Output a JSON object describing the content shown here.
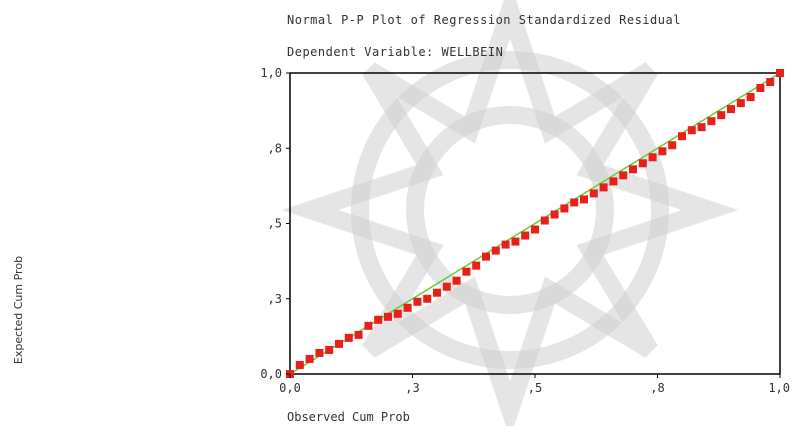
{
  "chart_data": {
    "type": "scatter",
    "title": "Normal P-P Plot of Regression Standardized Residual",
    "subtitle": "Dependent Variable: WELLBEIN",
    "xlabel": "Observed Cum Prob",
    "ylabel": "Expected Cum Prob",
    "xlim": [
      0,
      1
    ],
    "ylim": [
      0,
      1
    ],
    "x_ticks": [
      {
        "value": 0.0,
        "label": "0,0"
      },
      {
        "value": 0.25,
        "label": ",3"
      },
      {
        "value": 0.5,
        "label": ",5"
      },
      {
        "value": 0.75,
        "label": ",8"
      },
      {
        "value": 1.0,
        "label": "1,0"
      }
    ],
    "y_ticks": [
      {
        "value": 0.0,
        "label": "0,0"
      },
      {
        "value": 0.25,
        "label": ",3"
      },
      {
        "value": 0.5,
        "label": ",5"
      },
      {
        "value": 0.75,
        "label": ",8"
      },
      {
        "value": 1.0,
        "label": "1,0"
      }
    ],
    "grid": false,
    "reference_line": {
      "from": [
        0,
        0
      ],
      "to": [
        1,
        1
      ],
      "color": "#66cc33"
    },
    "series": [
      {
        "color": "#e8201a",
        "points": [
          [
            0.0,
            0.0
          ],
          [
            0.02,
            0.03
          ],
          [
            0.04,
            0.05
          ],
          [
            0.06,
            0.07
          ],
          [
            0.08,
            0.08
          ],
          [
            0.1,
            0.1
          ],
          [
            0.12,
            0.12
          ],
          [
            0.14,
            0.13
          ],
          [
            0.16,
            0.16
          ],
          [
            0.18,
            0.18
          ],
          [
            0.2,
            0.19
          ],
          [
            0.22,
            0.2
          ],
          [
            0.24,
            0.22
          ],
          [
            0.26,
            0.24
          ],
          [
            0.28,
            0.25
          ],
          [
            0.3,
            0.27
          ],
          [
            0.32,
            0.29
          ],
          [
            0.34,
            0.31
          ],
          [
            0.36,
            0.34
          ],
          [
            0.38,
            0.36
          ],
          [
            0.4,
            0.39
          ],
          [
            0.42,
            0.41
          ],
          [
            0.44,
            0.43
          ],
          [
            0.46,
            0.44
          ],
          [
            0.48,
            0.46
          ],
          [
            0.5,
            0.48
          ],
          [
            0.52,
            0.51
          ],
          [
            0.54,
            0.53
          ],
          [
            0.56,
            0.55
          ],
          [
            0.58,
            0.57
          ],
          [
            0.6,
            0.58
          ],
          [
            0.62,
            0.6
          ],
          [
            0.64,
            0.62
          ],
          [
            0.66,
            0.64
          ],
          [
            0.68,
            0.66
          ],
          [
            0.7,
            0.68
          ],
          [
            0.72,
            0.7
          ],
          [
            0.74,
            0.72
          ],
          [
            0.76,
            0.74
          ],
          [
            0.78,
            0.76
          ],
          [
            0.8,
            0.79
          ],
          [
            0.82,
            0.81
          ],
          [
            0.84,
            0.82
          ],
          [
            0.86,
            0.84
          ],
          [
            0.88,
            0.86
          ],
          [
            0.9,
            0.88
          ],
          [
            0.92,
            0.9
          ],
          [
            0.94,
            0.92
          ],
          [
            0.96,
            0.95
          ],
          [
            0.98,
            0.97
          ],
          [
            1.0,
            1.0
          ]
        ]
      }
    ]
  },
  "colors": {
    "points": "#e8201a",
    "reference_line": "#66cc33",
    "frame": "#000000",
    "watermark": "#cfcfcf"
  }
}
